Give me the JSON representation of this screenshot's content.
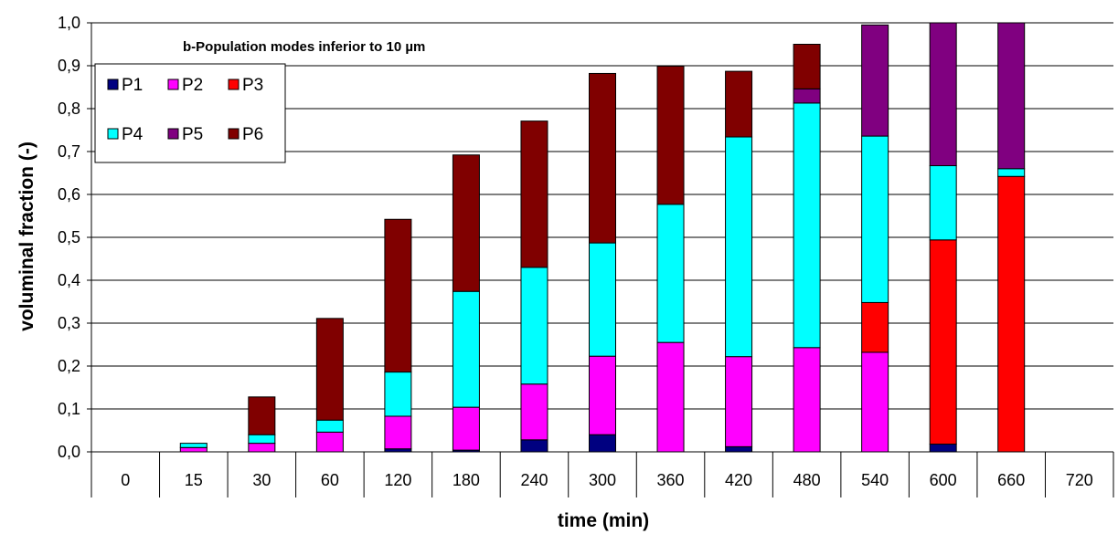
{
  "chart_data": {
    "type": "bar",
    "stacked": true,
    "annotation": "b-Population modes inferior to 10 µm",
    "xlabel": "time (min)",
    "ylabel": "voluminal fraction (-)",
    "ylim": [
      0,
      1.0
    ],
    "yticks": [
      "0,0",
      "0,1",
      "0,2",
      "0,3",
      "0,4",
      "0,5",
      "0,6",
      "0,7",
      "0,8",
      "0,9",
      "1,0"
    ],
    "grid": true,
    "legend_position": "top-left",
    "categories": [
      "0",
      "15",
      "30",
      "60",
      "120",
      "180",
      "240",
      "300",
      "360",
      "420",
      "480",
      "540",
      "600",
      "660",
      "720"
    ],
    "series": [
      {
        "name": "P1",
        "color": "#000080",
        "values": [
          0,
          0,
          0,
          0,
          0.007,
          0.004,
          0.028,
          0.04,
          0,
          0.012,
          0,
          0,
          0.018,
          0,
          0
        ]
      },
      {
        "name": "P2",
        "color": "#FF00FF",
        "values": [
          0,
          0.01,
          0.02,
          0.046,
          0.076,
          0.1,
          0.13,
          0.183,
          0.255,
          0.21,
          0.243,
          0.232,
          0,
          0,
          0
        ]
      },
      {
        "name": "P3",
        "color": "#FF0000",
        "values": [
          0,
          0,
          0,
          0,
          0,
          0,
          0,
          0,
          0,
          0,
          0,
          0.116,
          0.476,
          0.642,
          0
        ]
      },
      {
        "name": "P4",
        "color": "#00FFFF",
        "values": [
          0,
          0.01,
          0.02,
          0.028,
          0.103,
          0.27,
          0.272,
          0.264,
          0.322,
          0.512,
          0.57,
          0.388,
          0.173,
          0.018,
          0
        ]
      },
      {
        "name": "P5",
        "color": "#800080",
        "values": [
          0,
          0,
          0,
          0,
          0,
          0,
          0,
          0,
          0,
          0,
          0.033,
          0.259,
          0.333,
          0.34,
          0
        ]
      },
      {
        "name": "P6",
        "color": "#800000",
        "values": [
          0,
          0,
          0.088,
          0.237,
          0.356,
          0.318,
          0.341,
          0.395,
          0.322,
          0.153,
          0.104,
          0,
          0,
          0,
          0
        ]
      }
    ]
  }
}
